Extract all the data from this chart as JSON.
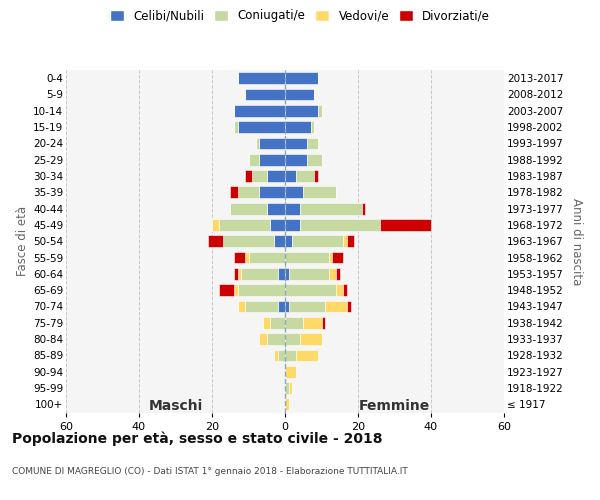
{
  "age_groups": [
    "0-4",
    "5-9",
    "10-14",
    "15-19",
    "20-24",
    "25-29",
    "30-34",
    "35-39",
    "40-44",
    "45-49",
    "50-54",
    "55-59",
    "60-64",
    "65-69",
    "70-74",
    "75-79",
    "80-84",
    "85-89",
    "90-94",
    "95-99",
    "100+"
  ],
  "birth_years": [
    "2013-2017",
    "2008-2012",
    "2003-2007",
    "1998-2002",
    "1993-1997",
    "1988-1992",
    "1983-1987",
    "1978-1982",
    "1973-1977",
    "1968-1972",
    "1963-1967",
    "1958-1962",
    "1953-1957",
    "1948-1952",
    "1943-1947",
    "1938-1942",
    "1933-1937",
    "1928-1932",
    "1923-1927",
    "1918-1922",
    "≤ 1917"
  ],
  "colors": {
    "celibe": "#4472C4",
    "coniugato": "#C5D9A0",
    "vedovo": "#FFD966",
    "divorziato": "#CC0000"
  },
  "maschi": {
    "celibe": [
      13,
      11,
      14,
      13,
      7,
      7,
      5,
      7,
      5,
      4,
      3,
      0,
      2,
      0,
      2,
      0,
      0,
      0,
      0,
      0,
      0
    ],
    "coniugato": [
      0,
      0,
      0,
      1,
      1,
      3,
      4,
      6,
      10,
      14,
      14,
      10,
      10,
      13,
      9,
      4,
      5,
      2,
      0,
      0,
      0
    ],
    "vedovo": [
      0,
      0,
      0,
      0,
      0,
      0,
      0,
      0,
      0,
      2,
      0,
      1,
      1,
      1,
      2,
      2,
      2,
      1,
      0,
      0,
      0
    ],
    "divorziato": [
      0,
      0,
      0,
      0,
      0,
      0,
      2,
      2,
      0,
      0,
      4,
      3,
      1,
      4,
      0,
      0,
      0,
      0,
      0,
      0,
      0
    ]
  },
  "femmine": {
    "nubile": [
      9,
      8,
      9,
      7,
      6,
      6,
      3,
      5,
      4,
      4,
      2,
      0,
      1,
      0,
      1,
      0,
      0,
      0,
      0,
      0,
      0
    ],
    "coniugata": [
      0,
      0,
      1,
      1,
      3,
      4,
      5,
      9,
      17,
      22,
      14,
      12,
      11,
      14,
      10,
      5,
      4,
      3,
      0,
      1,
      0
    ],
    "vedova": [
      0,
      0,
      0,
      0,
      0,
      0,
      0,
      0,
      0,
      0,
      1,
      1,
      2,
      2,
      6,
      5,
      6,
      6,
      3,
      1,
      1
    ],
    "divorziata": [
      0,
      0,
      0,
      0,
      0,
      0,
      1,
      0,
      1,
      14,
      2,
      3,
      1,
      1,
      1,
      1,
      0,
      0,
      0,
      0,
      0
    ]
  },
  "xlim": 60,
  "title": "Popolazione per età, sesso e stato civile - 2018",
  "subtitle": "COMUNE DI MAGREGLIO (CO) - Dati ISTAT 1° gennaio 2018 - Elaborazione TUTTITALIA.IT",
  "ylabel_left": "Fasce di età",
  "ylabel_right": "Anni di nascita",
  "xlabel_maschi": "Maschi",
  "xlabel_femmine": "Femmine",
  "legend_labels": [
    "Celibi/Nubili",
    "Coniugati/e",
    "Vedovi/e",
    "Divorziati/e"
  ],
  "bg_color": "#F5F5F5",
  "grid_color": "#C8C8C8"
}
